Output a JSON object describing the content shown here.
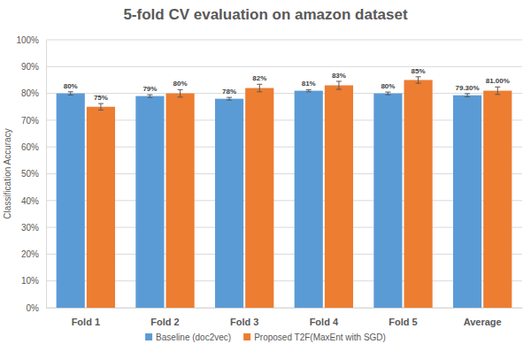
{
  "chart_data": {
    "type": "bar",
    "title": "5-fold CV evaluation on amazon dataset",
    "y_label": "Classification Accuracy",
    "categories": [
      "Fold 1",
      "Fold 2",
      "Fold 3",
      "Fold 4",
      "Fold 5",
      "Average"
    ],
    "series": [
      {
        "name": "Baseline (doc2vec)",
        "color": "#5b9bd5",
        "values": [
          80,
          79,
          78,
          81,
          80,
          79.3
        ],
        "value_labels": [
          "80%",
          "79%",
          "78%",
          "81%",
          "80%",
          "79.30%"
        ],
        "errors": [
          0.6,
          0.5,
          0.5,
          0.4,
          0.5,
          0.6
        ]
      },
      {
        "name": "Proposed T2F(MaxEnt with SGD)",
        "color": "#ed7d31",
        "values": [
          75,
          80,
          82,
          83,
          85,
          81
        ],
        "value_labels": [
          "75%",
          "80%",
          "82%",
          "83%",
          "85%",
          "81.00%"
        ],
        "errors": [
          1.2,
          1.4,
          1.4,
          1.5,
          1.2,
          1.4
        ]
      }
    ],
    "ylim": [
      0,
      100
    ],
    "yticks": [
      {
        "value": 0,
        "label": "0%"
      },
      {
        "value": 10,
        "label": "10%"
      },
      {
        "value": 20,
        "label": "20%"
      },
      {
        "value": 30,
        "label": "30%"
      },
      {
        "value": 40,
        "label": "40%"
      },
      {
        "value": 50,
        "label": "50%"
      },
      {
        "value": 60,
        "label": "60%"
      },
      {
        "value": 70,
        "label": "70%"
      },
      {
        "value": 80,
        "label": "80%"
      },
      {
        "value": 90,
        "label": "90%"
      },
      {
        "value": 100,
        "label": "100%"
      }
    ],
    "grid": true,
    "legend": "bottom",
    "data_labels": true
  }
}
